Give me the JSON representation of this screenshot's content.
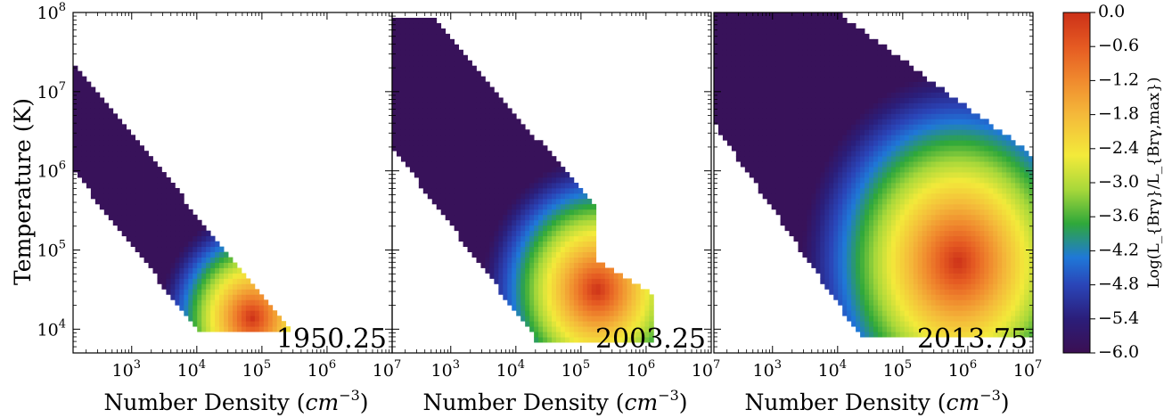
{
  "chart_data": {
    "type": "heatmap",
    "panels": [
      {
        "label": "1950.25",
        "xlabel": "Number Density",
        "xlabel_unit": "cm",
        "xlabel_unit_exp": "−3",
        "ylabel": "Temperature (K)",
        "x_log_range": [
          2.1,
          7
        ],
        "y_log_range": [
          3.7,
          8
        ],
        "x_tick_exps": [
          "3",
          "4",
          "5",
          "6",
          "7"
        ],
        "peak": {
          "log_n": 4.85,
          "log_T": 4.15
        }
      },
      {
        "label": "2003.25",
        "xlabel": "Number Density",
        "xlabel_unit": "cm",
        "xlabel_unit_exp": "−3",
        "x_log_range": [
          2.1,
          7
        ],
        "y_log_range": [
          3.7,
          8
        ],
        "x_tick_exps": [
          "3",
          "4",
          "5",
          "6",
          "7"
        ],
        "peak": {
          "log_n": 5.25,
          "log_T": 4.5
        }
      },
      {
        "label": "2013.75",
        "xlabel": "Number Density",
        "xlabel_unit": "cm",
        "xlabel_unit_exp": "−3",
        "x_log_range": [
          2.1,
          7
        ],
        "y_log_range": [
          3.7,
          8
        ],
        "x_tick_exps": [
          "3",
          "4",
          "5",
          "6",
          "7"
        ],
        "peak": {
          "log_n": 5.85,
          "log_T": 4.85
        }
      }
    ],
    "y_tick_base": "10",
    "y_tick_exps": [
      "4",
      "5",
      "6",
      "7",
      "8"
    ],
    "x_tick_base": "10",
    "colorbar": {
      "label": "Log(L_{Brγ}/L_{Brγ,max})",
      "range": [
        -6.0,
        0.0
      ],
      "ticks": [
        "0.0",
        "−0.6",
        "−1.2",
        "−1.8",
        "−2.4",
        "−3.0",
        "−3.6",
        "−4.2",
        "−4.8",
        "−5.4",
        "−6.0"
      ],
      "colormap": [
        "#3b0f52",
        "#2a45b8",
        "#1f78d8",
        "#2fa83a",
        "#a8d83a",
        "#f3ea3a",
        "#f4b93a",
        "#f08a2e",
        "#e55a22",
        "#cc3018"
      ]
    }
  }
}
